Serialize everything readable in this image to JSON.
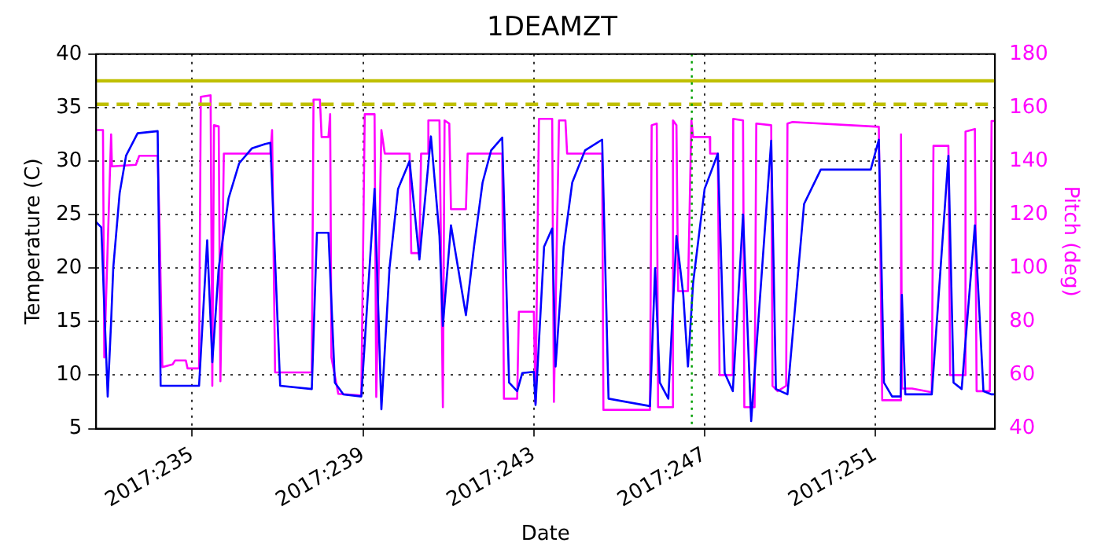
{
  "chart_data": {
    "type": "line",
    "title": "1DEAMZT",
    "xlabel": "Date",
    "ylabel": "Temperature (C)",
    "y2label": "Pitch (deg)",
    "xlim": [
      "2017-08-20T18:00",
      "2017-09-10T19:12"
    ],
    "xticks": [
      {
        "value": "2017-08-23",
        "label": "2017:235"
      },
      {
        "value": "2017-08-27",
        "label": "2017:239"
      },
      {
        "value": "2017-08-31",
        "label": "2017:243"
      },
      {
        "value": "2017-09-04",
        "label": "2017:247"
      },
      {
        "value": "2017-09-08",
        "label": "2017:251"
      }
    ],
    "ylim": [
      5,
      40
    ],
    "yticks": [
      5,
      10,
      15,
      20,
      25,
      30,
      35,
      40
    ],
    "y2lim": [
      40,
      180
    ],
    "y2ticks": [
      40,
      60,
      80,
      100,
      120,
      140,
      160,
      180
    ],
    "grid": true,
    "legend": false,
    "marker": "none",
    "line_style": "solid",
    "series": [
      {
        "color": "#0000ff",
        "axis": "y",
        "x": [
          "2017-08-20T18:00",
          "2017-08-20T20:53",
          "2017-08-21T00:29",
          "2017-08-21T02:24",
          "2017-08-21T03:36",
          "2017-08-21T07:12",
          "2017-08-21T10:48",
          "2017-08-21T17:17",
          "2017-08-22T04:34",
          "2017-08-22T06:14",
          "2017-08-23T03:50",
          "2017-08-23T08:24",
          "2017-08-23T11:17",
          "2017-08-23T14:53",
          "2017-08-23T20:24",
          "2017-08-24T02:24",
          "2017-08-24T09:36",
          "2017-08-24T17:02",
          "2017-08-24T19:55",
          "2017-08-25T01:26",
          "2017-08-25T19:12",
          "2017-08-25T22:05",
          "2017-08-26T04:34",
          "2017-08-26T08:10",
          "2017-08-26T12:58",
          "2017-08-26T23:02",
          "2017-08-27T06:29",
          "2017-08-27T10:19",
          "2017-08-27T14:53",
          "2017-08-27T19:41",
          "2017-08-28T02:10",
          "2017-08-28T07:41",
          "2017-08-28T14:10",
          "2017-08-28T18:58",
          "2017-08-28T20:53",
          "2017-08-29T01:26",
          "2017-08-29T09:50",
          "2017-08-29T14:24",
          "2017-08-29T19:12",
          "2017-08-30T00:00",
          "2017-08-30T06:14",
          "2017-08-30T10:05",
          "2017-08-30T14:38",
          "2017-08-30T17:31",
          "2017-08-31T00:00",
          "2017-08-31T00:58",
          "2017-08-31T05:46",
          "2017-08-31T10:19",
          "2017-08-31T12:14",
          "2017-08-31T16:48",
          "2017-08-31T21:36",
          "2017-09-01T04:48",
          "2017-09-01T14:24",
          "2017-09-01T18:00",
          "2017-09-02T17:17",
          "2017-09-02T20:10",
          "2017-09-02T22:48",
          "2017-09-03T03:36",
          "2017-09-03T08:10",
          "2017-09-03T12:00",
          "2017-09-03T14:38",
          "2017-09-03T17:31",
          "2017-09-04T00:00",
          "2017-09-04T07:26",
          "2017-09-04T11:17",
          "2017-09-04T15:50",
          "2017-09-04T21:36",
          "2017-09-05T02:10",
          "2017-09-05T13:26",
          "2017-09-05T16:05",
          "2017-09-05T22:34",
          "2017-09-06T07:55",
          "2017-09-06T17:17",
          "2017-09-07T21:22",
          "2017-09-08T01:55",
          "2017-09-08T04:48",
          "2017-09-08T09:22",
          "2017-09-08T14:10",
          "2017-09-08T14:53",
          "2017-09-08T16:48",
          "2017-09-09T07:41",
          "2017-09-09T17:02",
          "2017-09-09T19:55",
          "2017-09-10T00:29",
          "2017-09-10T07:55",
          "2017-09-10T12:43",
          "2017-09-10T17:17",
          "2017-09-10T19:12"
        ],
        "values": [
          24.3,
          23.8,
          8.0,
          15,
          20,
          27,
          30.5,
          32.6,
          32.8,
          9.0,
          9.0,
          22.6,
          11.2,
          20,
          26.5,
          29.8,
          31.2,
          31.6,
          31.7,
          9.0,
          8.7,
          23.3,
          23.3,
          9.3,
          8.2,
          8.0,
          27.4,
          6.8,
          20,
          27.4,
          30.0,
          20.8,
          32.3,
          23,
          14.6,
          24.0,
          15.6,
          22,
          28,
          31,
          32.2,
          9.3,
          8.5,
          10.2,
          10.3,
          7.2,
          22,
          23.7,
          10.8,
          22,
          28,
          31,
          32,
          7.8,
          7.1,
          20,
          9.3,
          7.8,
          23,
          17.5,
          10.8,
          18.6,
          27.4,
          30.7,
          10.2,
          8.5,
          25,
          5.7,
          31.9,
          8.7,
          8.2,
          26,
          29.2,
          29.2,
          32,
          9.3,
          8.0,
          8.0,
          17.5,
          8.2,
          8.2,
          30.5,
          9.3,
          8.7,
          24,
          8.5,
          8.2,
          8.2
        ]
      },
      {
        "color": "#ff00ff",
        "axis": "y2",
        "x": [
          "2017-08-20T18:00",
          "2017-08-20T21:50",
          "2017-08-20T22:34",
          "2017-08-21T02:24",
          "2017-08-21T02:53",
          "2017-08-21T16:19",
          "2017-08-21T18:14",
          "2017-08-22T04:34",
          "2017-08-22T05:31",
          "2017-08-22T07:12",
          "2017-08-22T12:58",
          "2017-08-22T14:24",
          "2017-08-22T20:24",
          "2017-08-22T21:22",
          "2017-08-23T03:50",
          "2017-08-23T04:48",
          "2017-08-23T10:19",
          "2017-08-23T11:17",
          "2017-08-23T12:14",
          "2017-08-23T14:53",
          "2017-08-23T15:50",
          "2017-08-23T17:46",
          "2017-08-24T19:55",
          "2017-08-24T20:53",
          "2017-08-24T22:34",
          "2017-08-25T19:12",
          "2017-08-25T20:10",
          "2017-08-25T23:46",
          "2017-08-26T00:43",
          "2017-08-26T04:34",
          "2017-08-26T05:31",
          "2017-08-26T06:14",
          "2017-08-26T10:05",
          "2017-08-26T23:02",
          "2017-08-27T00:58",
          "2017-08-27T06:29",
          "2017-08-27T07:26",
          "2017-08-27T10:19",
          "2017-08-27T12:14",
          "2017-08-28T02:10",
          "2017-08-28T03:07",
          "2017-08-28T07:41",
          "2017-08-28T08:38",
          "2017-08-28T12:29",
          "2017-08-28T12:43",
          "2017-08-28T18:58",
          "2017-08-28T20:53",
          "2017-08-28T21:50",
          "2017-08-29T00:29",
          "2017-08-29T01:26",
          "2017-08-29T09:50",
          "2017-08-29T10:48",
          "2017-08-30T06:14",
          "2017-08-30T07:12",
          "2017-08-30T14:38",
          "2017-08-30T15:36",
          "2017-08-31T00:00",
          "2017-08-31T00:58",
          "2017-08-31T02:53",
          "2017-08-31T10:19",
          "2017-08-31T11:17",
          "2017-08-31T14:10",
          "2017-08-31T17:46",
          "2017-08-31T18:43",
          "2017-09-01T14:24",
          "2017-09-01T15:07",
          "2017-09-02T17:17",
          "2017-09-02T18:14",
          "2017-09-02T21:07",
          "2017-09-02T21:50",
          "2017-09-03T05:31",
          "2017-09-03T06:14",
          "2017-09-03T08:10",
          "2017-09-03T09:07",
          "2017-09-03T14:38",
          "2017-09-03T16:34",
          "2017-09-03T17:31",
          "2017-09-04T02:53",
          "2017-09-04T03:07",
          "2017-09-04T07:26",
          "2017-09-04T08:24",
          "2017-09-04T15:50",
          "2017-09-04T16:05",
          "2017-09-04T21:36",
          "2017-09-04T22:19",
          "2017-09-05T04:05",
          "2017-09-05T05:02",
          "2017-09-05T13:26",
          "2017-09-05T14:10",
          "2017-09-05T17:02",
          "2017-09-05T21:50",
          "2017-09-05T22:34",
          "2017-09-06T01:26",
          "2017-09-08T01:55",
          "2017-09-08T03:50",
          "2017-09-08T14:10",
          "2017-09-08T14:24",
          "2017-09-08T14:53",
          "2017-09-08T20:38",
          "2017-09-09T07:41",
          "2017-09-09T08:38",
          "2017-09-09T17:02",
          "2017-09-09T18:00",
          "2017-09-10T02:24",
          "2017-09-10T02:38",
          "2017-09-10T07:55",
          "2017-09-10T08:53",
          "2017-09-10T16:19",
          "2017-09-10T17:17",
          "2017-09-10T19:12"
        ],
        "values": [
          151.6,
          151.6,
          66.6,
          150,
          138,
          138.6,
          142,
          142,
          119,
          63,
          64,
          65.5,
          65.5,
          62.5,
          62.5,
          164,
          164.6,
          56,
          153.4,
          153,
          57.7,
          142.8,
          142.8,
          151.6,
          61,
          61,
          163,
          163,
          149,
          149,
          157.5,
          66.6,
          53,
          52.4,
          157.5,
          157.5,
          51.8,
          151.6,
          142.8,
          142.8,
          105.6,
          105.6,
          142.8,
          142.8,
          155.2,
          155.2,
          48,
          155.2,
          154,
          122,
          122,
          142.8,
          142.8,
          51.2,
          51.2,
          83.7,
          83.7,
          49.5,
          155.8,
          155.8,
          50,
          155.2,
          155.2,
          142.8,
          142.8,
          47,
          47,
          153.4,
          154,
          48,
          48,
          155.2,
          153.4,
          91.4,
          91.4,
          155.2,
          149,
          149,
          142.8,
          142.8,
          60,
          60,
          155.8,
          155.2,
          48,
          48,
          154,
          153.4,
          56,
          54,
          56,
          154,
          154.6,
          152.8,
          50.6,
          50.6,
          150,
          55,
          55,
          53.6,
          145.7,
          145.7,
          60,
          60,
          151,
          152,
          54,
          54,
          155,
          155
        ]
      }
    ],
    "ref_lines": [
      {
        "axis": "y",
        "value": 37.5,
        "color": "#bfbf00",
        "line_style": "solid"
      },
      {
        "axis": "y",
        "value": 35.3,
        "color": "#bfbf00",
        "line_style": "dashed"
      },
      {
        "axis": "x",
        "value": "2017-09-03T16:48",
        "color": "#00a000",
        "line_style": "dotted"
      }
    ]
  }
}
